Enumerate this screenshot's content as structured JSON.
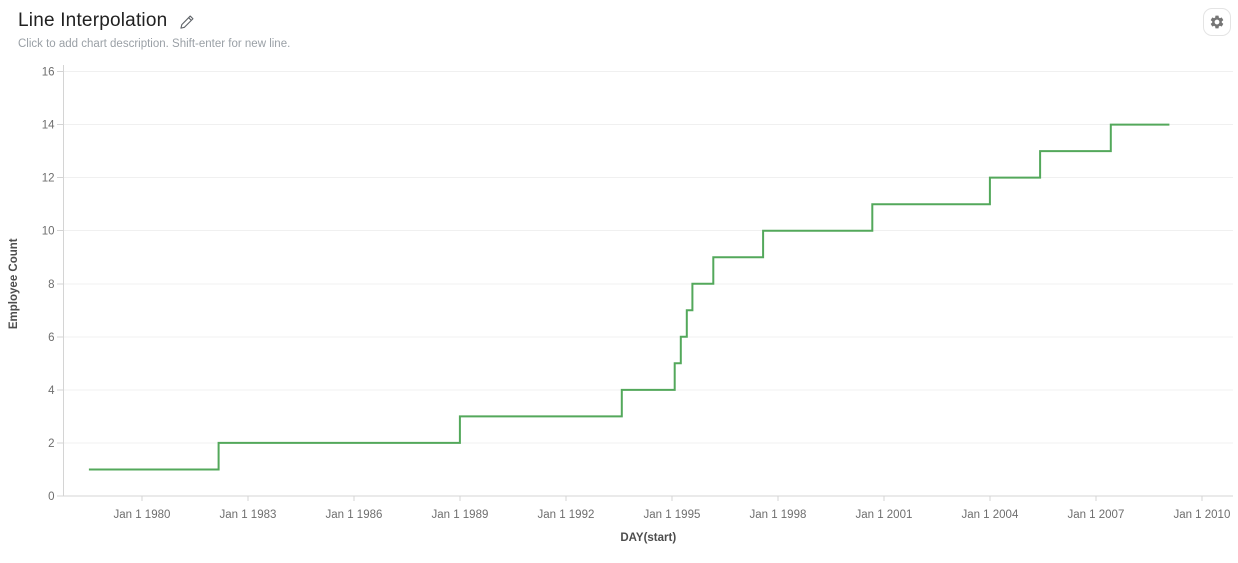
{
  "header": {
    "title": "Line Interpolation",
    "subtitle": "Click to add chart description. Shift-enter for new line."
  },
  "icons": {
    "edit": "pencil-icon",
    "settings": "gear-icon"
  },
  "chart_data": {
    "type": "line",
    "interpolation": "step-after",
    "title": "Line Interpolation",
    "xlabel": "DAY(start)",
    "ylabel": "Employee Count",
    "ylim": [
      0,
      16
    ],
    "xlim_years": [
      1977.78,
      2010.88
    ],
    "grid": "horizontal",
    "legend": "none",
    "colors": {
      "line": "#53A85B",
      "grid": "#F0F0F0",
      "axis": "#D4D4D4",
      "tick": "#D4D4D4",
      "tick_label": "#6E6E6E",
      "axis_title": "#4D4D4D"
    },
    "y_ticks": [
      0,
      2,
      4,
      6,
      8,
      10,
      12,
      14,
      16
    ],
    "x_ticks": [
      {
        "label": "Jan 1 1980",
        "year": 1980
      },
      {
        "label": "Jan 1 1983",
        "year": 1983
      },
      {
        "label": "Jan 1 1986",
        "year": 1986
      },
      {
        "label": "Jan 1 1989",
        "year": 1989
      },
      {
        "label": "Jan 1 1992",
        "year": 1992
      },
      {
        "label": "Jan 1 1995",
        "year": 1995
      },
      {
        "label": "Jan 1 1998",
        "year": 1998
      },
      {
        "label": "Jan 1 2001",
        "year": 2001
      },
      {
        "label": "Jan 1 2004",
        "year": 2004
      },
      {
        "label": "Jan 1 2007",
        "year": 2007
      },
      {
        "label": "Jan 1 2010",
        "year": 2010
      }
    ],
    "series": [
      {
        "name": "Employee Count",
        "points": [
          {
            "date": "Jul 1978",
            "x": 1978.5,
            "value": 1
          },
          {
            "date": "Mar 1982",
            "x": 1982.17,
            "value": 2
          },
          {
            "date": "Jan 1989",
            "x": 1989.0,
            "value": 3
          },
          {
            "date": "Aug 1993",
            "x": 1993.58,
            "value": 4
          },
          {
            "date": "Feb 1995",
            "x": 1995.08,
            "value": 5
          },
          {
            "date": "Apr 1995",
            "x": 1995.25,
            "value": 6
          },
          {
            "date": "Jun 1995",
            "x": 1995.42,
            "value": 7
          },
          {
            "date": "Aug 1995",
            "x": 1995.58,
            "value": 8
          },
          {
            "date": "Mar 1996",
            "x": 1996.17,
            "value": 9
          },
          {
            "date": "Aug 1997",
            "x": 1997.58,
            "value": 10
          },
          {
            "date": "Sep 2000",
            "x": 2000.67,
            "value": 11
          },
          {
            "date": "Jan 2004",
            "x": 2004.0,
            "value": 12
          },
          {
            "date": "Jun 2005",
            "x": 2005.42,
            "value": 13
          },
          {
            "date": "Jun 2007",
            "x": 2007.42,
            "value": 14
          }
        ],
        "end": {
          "date": "Feb 2009",
          "x": 2009.08,
          "value": 14
        }
      }
    ]
  }
}
